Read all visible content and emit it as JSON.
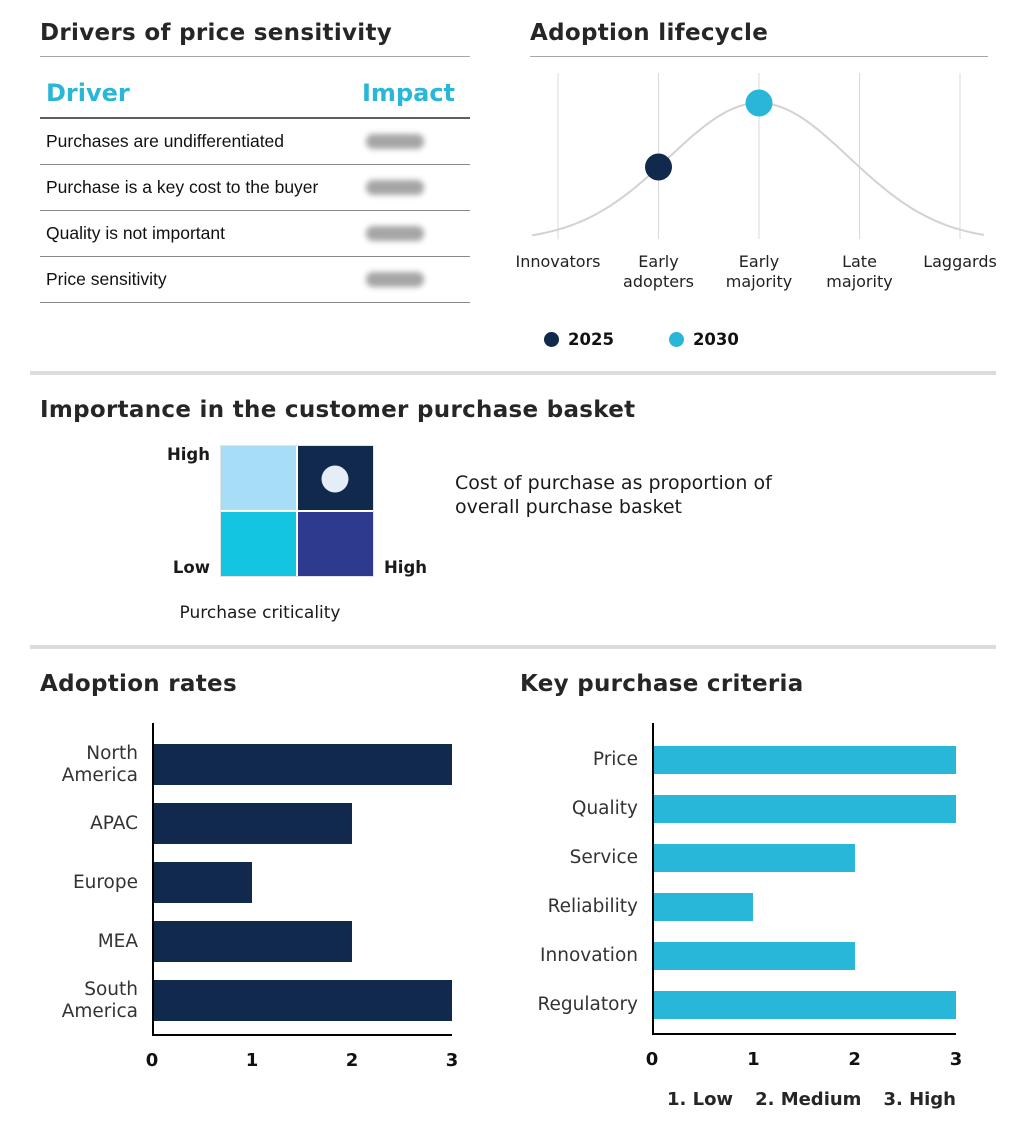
{
  "drivers_table": {
    "title": "Drivers of price sensitivity",
    "columns": [
      "Driver",
      "Impact"
    ],
    "rows": [
      "Purchases are undifferentiated",
      "Purchase is a key cost to the buyer",
      "Quality is not important",
      "Price sensitivity"
    ],
    "impact_values_blurred": true
  },
  "colors": {
    "navy": "#12294e",
    "cyan": "#29b7d9",
    "light_blue": "#a8ddf8",
    "bright_cyan": "#13c5e0",
    "indigo": "#2e3a8e",
    "curve_gray": "#d2d2d2"
  },
  "chart_data": [
    {
      "type": "line",
      "title": "Adoption lifecycle",
      "curve": "bell",
      "categories": [
        "Innovators",
        "Early adopters",
        "Early majority",
        "Late majority",
        "Laggards"
      ],
      "points": [
        {
          "label": "2025",
          "category": "Early adopters",
          "color": "#12294e"
        },
        {
          "label": "2030",
          "category": "Early majority",
          "color": "#29b7d9"
        }
      ],
      "legend": [
        {
          "label": "2025",
          "color": "#12294e"
        },
        {
          "label": "2030",
          "color": "#29b7d9"
        }
      ],
      "legend_position": "bottom",
      "grid": true
    },
    {
      "type": "heatmap",
      "title": "Importance in the customer purchase basket",
      "x_label": "Purchase criticality",
      "x_end_label": "High",
      "y_top_label": "High",
      "y_bottom_label": "Low",
      "annotation": "Cost of purchase as proportion of overall purchase basket",
      "quadrants": {
        "top_left": "#a8ddf8",
        "top_right": "#12294e",
        "bottom_left": "#13c5e0",
        "bottom_right": "#2e3a8e"
      },
      "marker": {
        "quadrant": "top_right",
        "color": "#e4edf8"
      }
    },
    {
      "type": "bar",
      "title": "Adoption rates",
      "categories": [
        "North America",
        "APAC",
        "Europe",
        "MEA",
        "South America"
      ],
      "values": [
        3,
        2,
        1,
        2,
        3
      ],
      "xmax": 3,
      "ticks": [
        0,
        1,
        2,
        3
      ],
      "color": "#12294e",
      "orientation": "horizontal"
    },
    {
      "type": "bar",
      "title": "Key purchase criteria",
      "categories": [
        "Price",
        "Quality",
        "Service",
        "Reliability",
        "Innovation",
        "Regulatory"
      ],
      "values": [
        3,
        3,
        2,
        1,
        2,
        3
      ],
      "xmax": 3,
      "ticks": [
        0,
        1,
        2,
        3
      ],
      "color": "#29b7d9",
      "orientation": "horizontal",
      "footnote_items": [
        "1. Low",
        "2. Medium",
        "3. High"
      ]
    }
  ]
}
